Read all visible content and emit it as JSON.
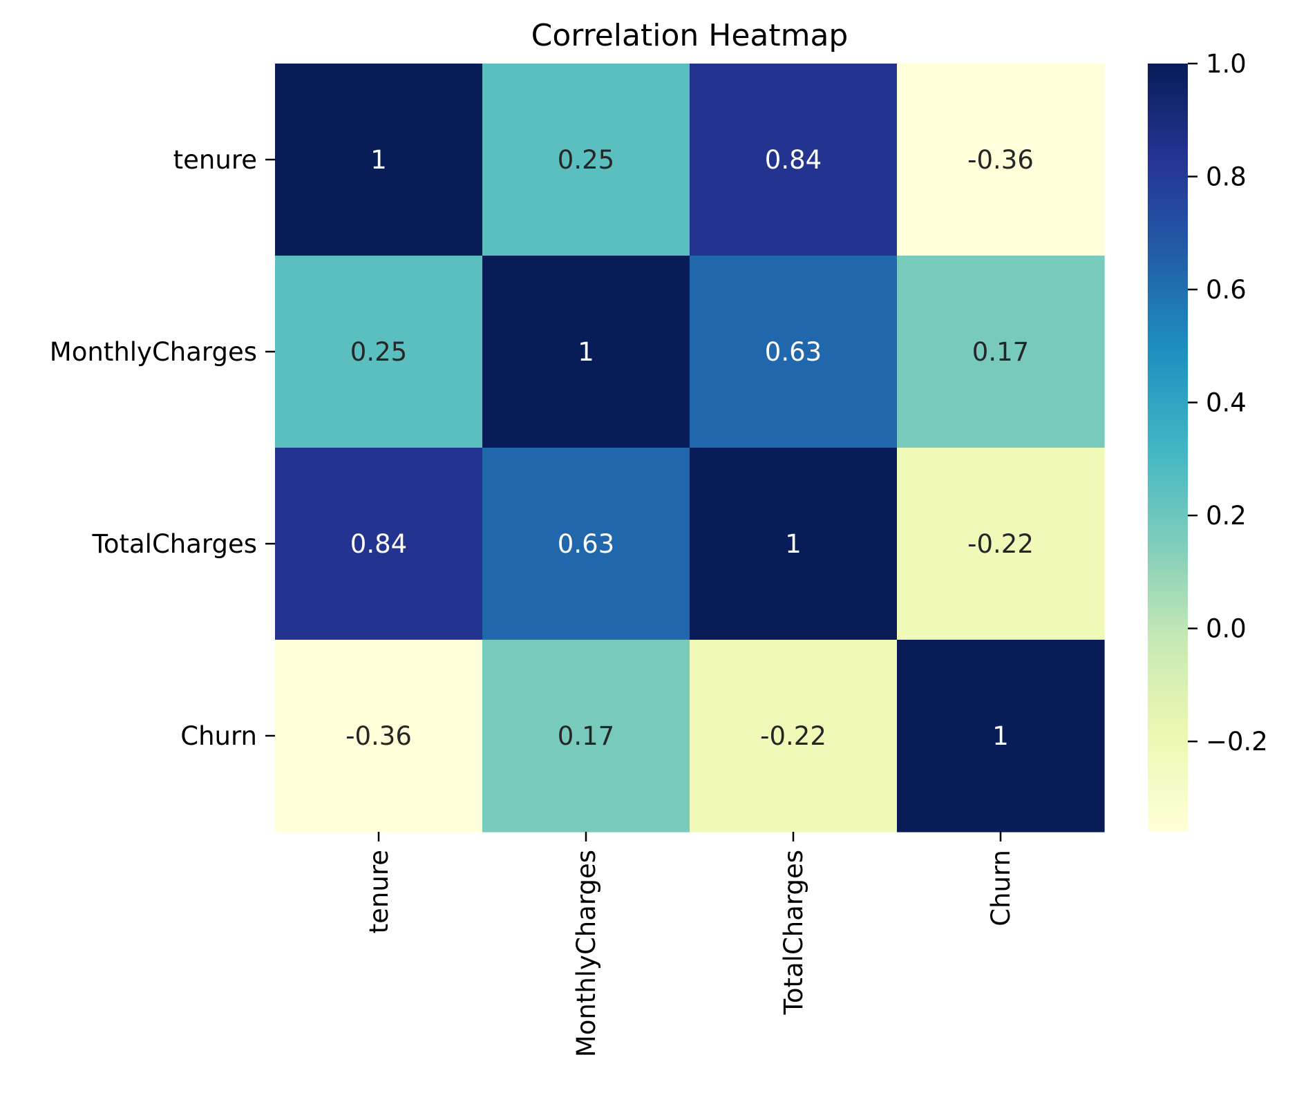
{
  "chart_data": {
    "type": "heatmap",
    "title": "Correlation Heatmap",
    "xlabel": "",
    "ylabel": "",
    "x_categories": [
      "tenure",
      "MonthlyCharges",
      "TotalCharges",
      "Churn"
    ],
    "y_categories": [
      "tenure",
      "MonthlyCharges",
      "TotalCharges",
      "Churn"
    ],
    "values": [
      [
        1,
        0.25,
        0.84,
        -0.36
      ],
      [
        0.25,
        1,
        0.63,
        0.17
      ],
      [
        0.84,
        0.63,
        1,
        -0.22
      ],
      [
        -0.36,
        0.17,
        -0.22,
        1
      ]
    ],
    "cell_labels": [
      [
        "1",
        "0.25",
        "0.84",
        "-0.36"
      ],
      [
        "0.25",
        "1",
        "0.63",
        "0.17"
      ],
      [
        "0.84",
        "0.63",
        "1",
        "-0.22"
      ],
      [
        "-0.36",
        "0.17",
        "-0.22",
        "1"
      ]
    ],
    "colormap": "YlGnBu",
    "colorbar": {
      "vmin": -0.36,
      "vmax": 1.0,
      "ticks": [
        1.0,
        0.8,
        0.6,
        0.4,
        0.2,
        0.0,
        -0.2
      ],
      "tick_labels": [
        "1.0",
        "0.8",
        "0.6",
        "0.4",
        "0.2",
        "0.0",
        "−0.2"
      ]
    },
    "annotation_colors": {
      "light": "#ffffff",
      "dark": "#262626"
    }
  }
}
